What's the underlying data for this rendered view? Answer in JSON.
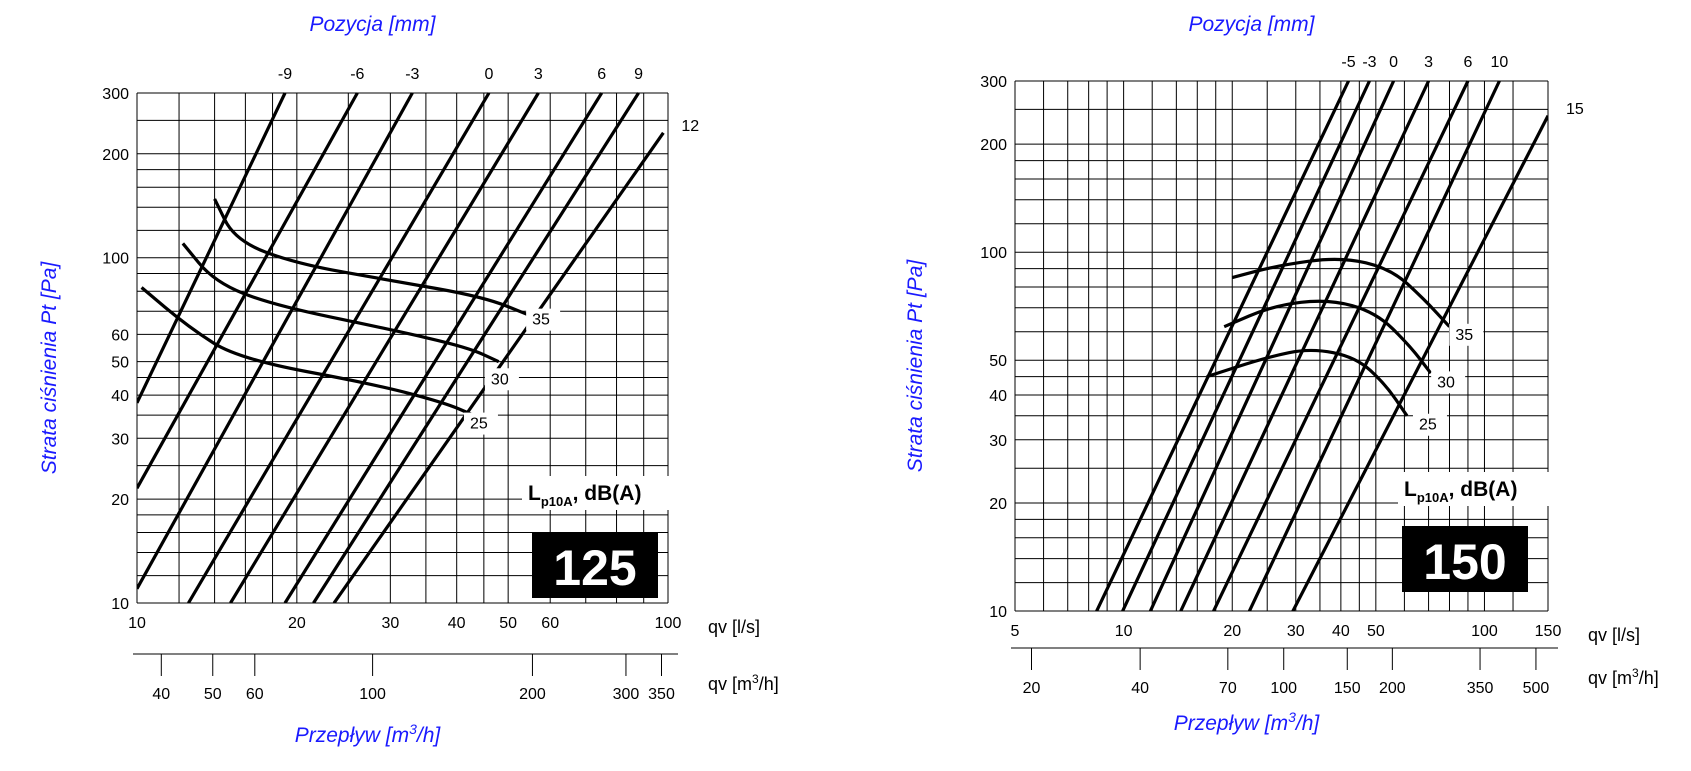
{
  "chart_data": [
    {
      "type": "line",
      "size_label": "125",
      "title": "Pozycja [mm]",
      "ylabel": "Strata ciśnienia Pt [Pa]",
      "xlabel": "Przepływ [m³/h]",
      "x_unit_top": "qv [l/s]",
      "x_unit_bottom_base": "qv [m",
      "x_unit_bottom_sup": "3",
      "x_unit_bottom_end": "/h]",
      "xlabel_base": "Przepływ [m",
      "xlabel_sup": "3",
      "xlabel_end": "/h]",
      "x_scale": "log",
      "y_scale": "log",
      "xlim": [
        10,
        100
      ],
      "ylim": [
        10,
        300
      ],
      "x_ticks": [
        "10",
        "20",
        "30",
        "40",
        "50",
        "60",
        "100"
      ],
      "x_tick_values": [
        10,
        20,
        30,
        40,
        50,
        60,
        100
      ],
      "m3h_ticks": [
        "40",
        "50",
        "60",
        "100",
        "200",
        "300",
        "350"
      ],
      "m3h_tick_values": [
        40,
        50,
        60,
        100,
        200,
        300,
        350
      ],
      "y_ticks": [
        "10",
        "20",
        "30",
        "40",
        "50",
        "60",
        "100",
        "200",
        "300"
      ],
      "y_tick_values": [
        10,
        20,
        30,
        40,
        50,
        60,
        100,
        200,
        300
      ],
      "legend_label_base": "L",
      "legend_label_sub": "p10A",
      "legend_label_end": ", dB(A)",
      "position_lines": [
        {
          "name": "-9",
          "points": [
            [
              10,
              38
            ],
            [
              19,
              300
            ]
          ]
        },
        {
          "name": "-6",
          "points": [
            [
              10,
              21.5
            ],
            [
              26,
              300
            ]
          ]
        },
        {
          "name": "-3",
          "points": [
            [
              10,
              11
            ],
            [
              33,
              300
            ]
          ]
        },
        {
          "name": "0",
          "points": [
            [
              12.5,
              10
            ],
            [
              46,
              300
            ]
          ]
        },
        {
          "name": "3",
          "points": [
            [
              15,
              10
            ],
            [
              57,
              300
            ]
          ]
        },
        {
          "name": "6",
          "points": [
            [
              19,
              10
            ],
            [
              75,
              300
            ]
          ]
        },
        {
          "name": "9",
          "points": [
            [
              21.5,
              10
            ],
            [
              88,
              300
            ]
          ]
        },
        {
          "name": "12",
          "points": [
            [
              23.5,
              10
            ],
            [
              98,
              230
            ]
          ]
        }
      ],
      "noise_curves": [
        {
          "name": "35",
          "points": [
            [
              14,
              148
            ],
            [
              15.3,
              112
            ],
            [
              20,
              96
            ],
            [
              30,
              86
            ],
            [
              45,
              77
            ],
            [
              55,
              68
            ]
          ]
        },
        {
          "name": "30",
          "points": [
            [
              12.2,
              110
            ],
            [
              14,
              85
            ],
            [
              18,
              73
            ],
            [
              30,
              62
            ],
            [
              42,
              55
            ],
            [
              48,
              50
            ]
          ]
        },
        {
          "name": "25",
          "points": [
            [
              10.2,
              82
            ],
            [
              12.5,
              63
            ],
            [
              15.5,
              51
            ],
            [
              28,
              43
            ],
            [
              38,
              38
            ],
            [
              43,
              35
            ]
          ]
        }
      ],
      "noise_labels": [
        {
          "name": "35",
          "at": [
            55,
            64
          ]
        },
        {
          "name": "30",
          "at": [
            46,
            43
          ]
        },
        {
          "name": "25",
          "at": [
            42,
            32
          ]
        }
      ]
    },
    {
      "type": "line",
      "size_label": "150",
      "title": "Pozycja [mm]",
      "ylabel": "Strata ciśnienia Pt [Pa]",
      "xlabel": "Przepływ [m³/h]",
      "x_unit_top": "qv [l/s]",
      "x_unit_bottom_base": "qv [m",
      "x_unit_bottom_sup": "3",
      "x_unit_bottom_end": "/h]",
      "xlabel_base": "Przepływ [m",
      "xlabel_sup": "3",
      "xlabel_end": "/h]",
      "x_scale": "log",
      "y_scale": "log",
      "xlim": [
        5,
        150
      ],
      "ylim": [
        10,
        300
      ],
      "x_ticks": [
        "5",
        "10",
        "20",
        "30",
        "40",
        "50",
        "100",
        "150"
      ],
      "x_tick_values": [
        5,
        10,
        20,
        30,
        40,
        50,
        100,
        150
      ],
      "m3h_ticks": [
        "20",
        "40",
        "70",
        "100",
        "150",
        "200",
        "350",
        "500"
      ],
      "m3h_tick_values": [
        20,
        40,
        70,
        100,
        150,
        200,
        350,
        500
      ],
      "y_ticks": [
        "10",
        "20",
        "30",
        "40",
        "50",
        "100",
        "200",
        "300"
      ],
      "y_tick_values": [
        10,
        20,
        30,
        40,
        50,
        100,
        200,
        300
      ],
      "legend_label_base": "L",
      "legend_label_sub": "p10A",
      "legend_label_end": ", dB(A)",
      "position_lines": [
        {
          "name": "-5",
          "points": [
            [
              8.3,
              9.7
            ],
            [
              42,
              300
            ]
          ]
        },
        {
          "name": "-3",
          "points": [
            [
              9.8,
              9.7
            ],
            [
              48,
              300
            ]
          ]
        },
        {
          "name": "0",
          "points": [
            [
              11.7,
              9.7
            ],
            [
              56,
              300
            ]
          ]
        },
        {
          "name": "3",
          "points": [
            [
              14.2,
              9.7
            ],
            [
              70,
              300
            ]
          ]
        },
        {
          "name": "6",
          "points": [
            [
              17.5,
              9.7
            ],
            [
              90,
              300
            ]
          ]
        },
        {
          "name": "10",
          "points": [
            [
              22,
              9.7
            ],
            [
              110,
              300
            ]
          ]
        },
        {
          "name": "15",
          "points": [
            [
              29,
              9.7
            ],
            [
              150,
              240
            ]
          ]
        }
      ],
      "noise_curves": [
        {
          "name": "35",
          "points": [
            [
              20,
              85
            ],
            [
              27,
              92
            ],
            [
              40,
              97
            ],
            [
              55,
              90
            ],
            [
              68,
              74
            ],
            [
              80,
              62
            ]
          ]
        },
        {
          "name": "30",
          "points": [
            [
              19,
              62
            ],
            [
              26,
              71
            ],
            [
              37,
              74
            ],
            [
              50,
              68
            ],
            [
              62,
              55
            ],
            [
              71,
              46
            ]
          ]
        },
        {
          "name": "25",
          "points": [
            [
              17,
              45
            ],
            [
              25,
              51
            ],
            [
              33,
              54
            ],
            [
              44,
              51
            ],
            [
              53,
              43
            ],
            [
              61,
              35
            ]
          ]
        }
      ],
      "noise_labels": [
        {
          "name": "35",
          "at": [
            82,
            57
          ]
        },
        {
          "name": "30",
          "at": [
            73,
            42
          ]
        },
        {
          "name": "25",
          "at": [
            65,
            32
          ]
        }
      ]
    }
  ]
}
